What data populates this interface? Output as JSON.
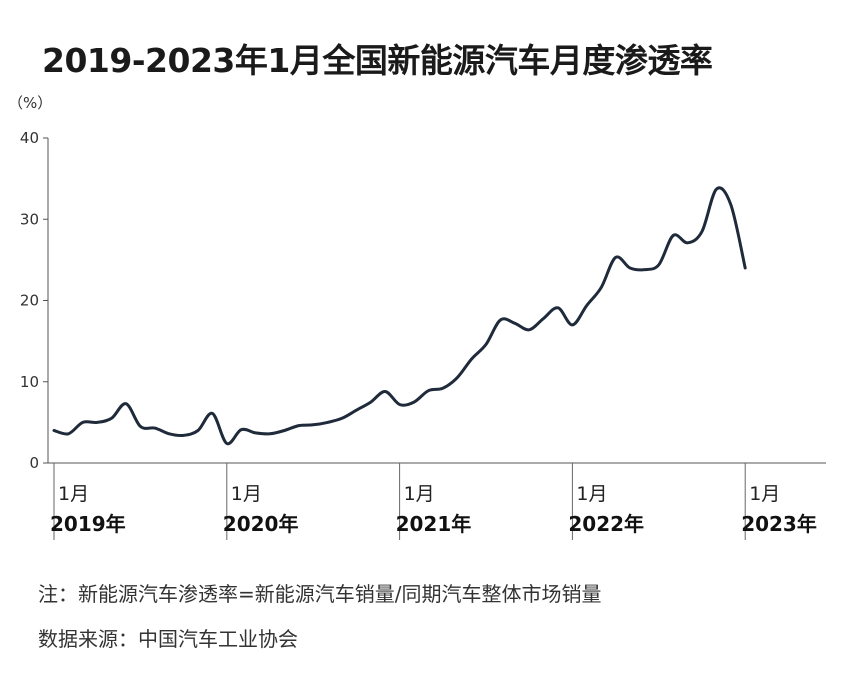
{
  "chart_data": {
    "type": "line",
    "title": "2019-2023年1月全国新能源汽车月度渗透率",
    "ylabel": "（%）",
    "ylim": [
      0,
      40
    ],
    "yticks": [
      "0",
      "10",
      "20",
      "30",
      "40"
    ],
    "xticks": [
      {
        "month": "1月",
        "year": "2019年"
      },
      {
        "month": "1月",
        "year": "2020年"
      },
      {
        "month": "1月",
        "year": "2021年"
      },
      {
        "month": "1月",
        "year": "2022年"
      },
      {
        "month": "1月",
        "year": "2023年"
      }
    ],
    "x": [
      "2019-01",
      "2019-02",
      "2019-03",
      "2019-04",
      "2019-05",
      "2019-06",
      "2019-07",
      "2019-08",
      "2019-09",
      "2019-10",
      "2019-11",
      "2019-12",
      "2020-01",
      "2020-02",
      "2020-03",
      "2020-04",
      "2020-05",
      "2020-06",
      "2020-07",
      "2020-08",
      "2020-09",
      "2020-10",
      "2020-11",
      "2020-12",
      "2021-01",
      "2021-02",
      "2021-03",
      "2021-04",
      "2021-05",
      "2021-06",
      "2021-07",
      "2021-08",
      "2021-09",
      "2021-10",
      "2021-11",
      "2021-12",
      "2022-01",
      "2022-02",
      "2022-03",
      "2022-04",
      "2022-05",
      "2022-06",
      "2022-07",
      "2022-08",
      "2022-09",
      "2022-10",
      "2022-11",
      "2022-12",
      "2023-01"
    ],
    "series": [
      {
        "values": [
          4.0,
          3.6,
          5.0,
          5.0,
          5.5,
          7.3,
          4.5,
          4.3,
          3.6,
          3.4,
          4.0,
          6.1,
          2.4,
          4.1,
          3.7,
          3.6,
          4.0,
          4.6,
          4.7,
          5.0,
          5.5,
          6.5,
          7.5,
          8.8,
          7.2,
          7.5,
          8.9,
          9.2,
          10.5,
          12.8,
          14.6,
          17.6,
          17.2,
          16.4,
          17.8,
          19.1,
          17.0,
          19.4,
          21.6,
          25.3,
          24.0,
          23.8,
          24.4,
          28.0,
          27.1,
          28.5,
          33.7,
          31.8,
          24.0
        ]
      }
    ],
    "color": "#1f2a3a",
    "grid": false
  },
  "notes": {
    "definition": "注：新能源汽车渗透率=新能源汽车销量/同期汽车整体市场销量",
    "source": "数据来源：中国汽车工业协会"
  }
}
